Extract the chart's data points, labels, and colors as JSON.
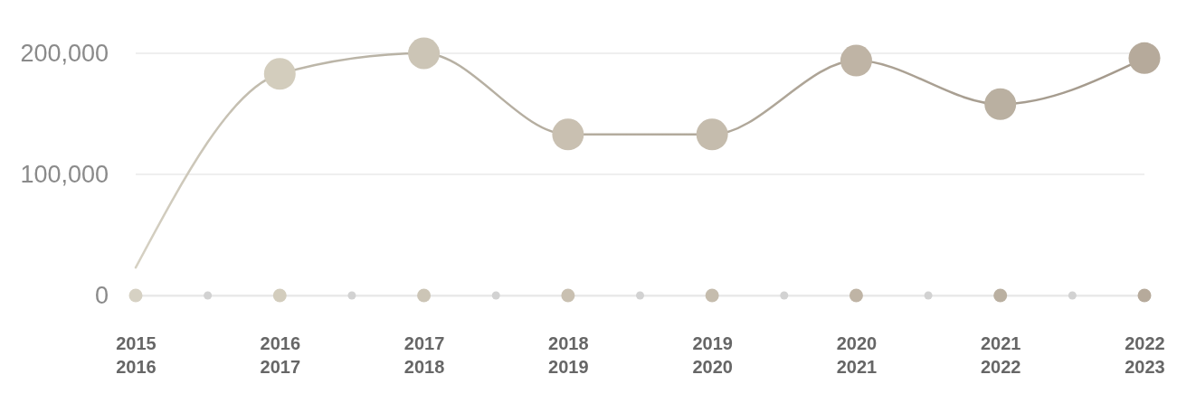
{
  "chart_data": {
    "type": "line",
    "categories": [
      "2015\n2016",
      "2016\n2017",
      "2017\n2018",
      "2018\n2019",
      "2019\n2020",
      "2020\n2021",
      "2021\n2022",
      "2022\n2023"
    ],
    "series": [
      {
        "color": "#d6d1c3",
        "colors": [
          null,
          "#d3cdbd",
          "#ccc5b6",
          "#c9c0b1",
          "#c5bcad",
          "#bfb4a5",
          "#bab0a1",
          "#b6aa9b"
        ],
        "values": [
          23000,
          183000,
          200000,
          133000,
          133000,
          194000,
          158000,
          196000
        ]
      }
    ],
    "ylim": [
      0,
      200000
    ],
    "yticks": [
      0,
      {
        "value": 100000,
        "label": "100,000"
      },
      {
        "value": 200000,
        "label": "200,000"
      }
    ],
    "grid": "y",
    "marker": "circle"
  }
}
